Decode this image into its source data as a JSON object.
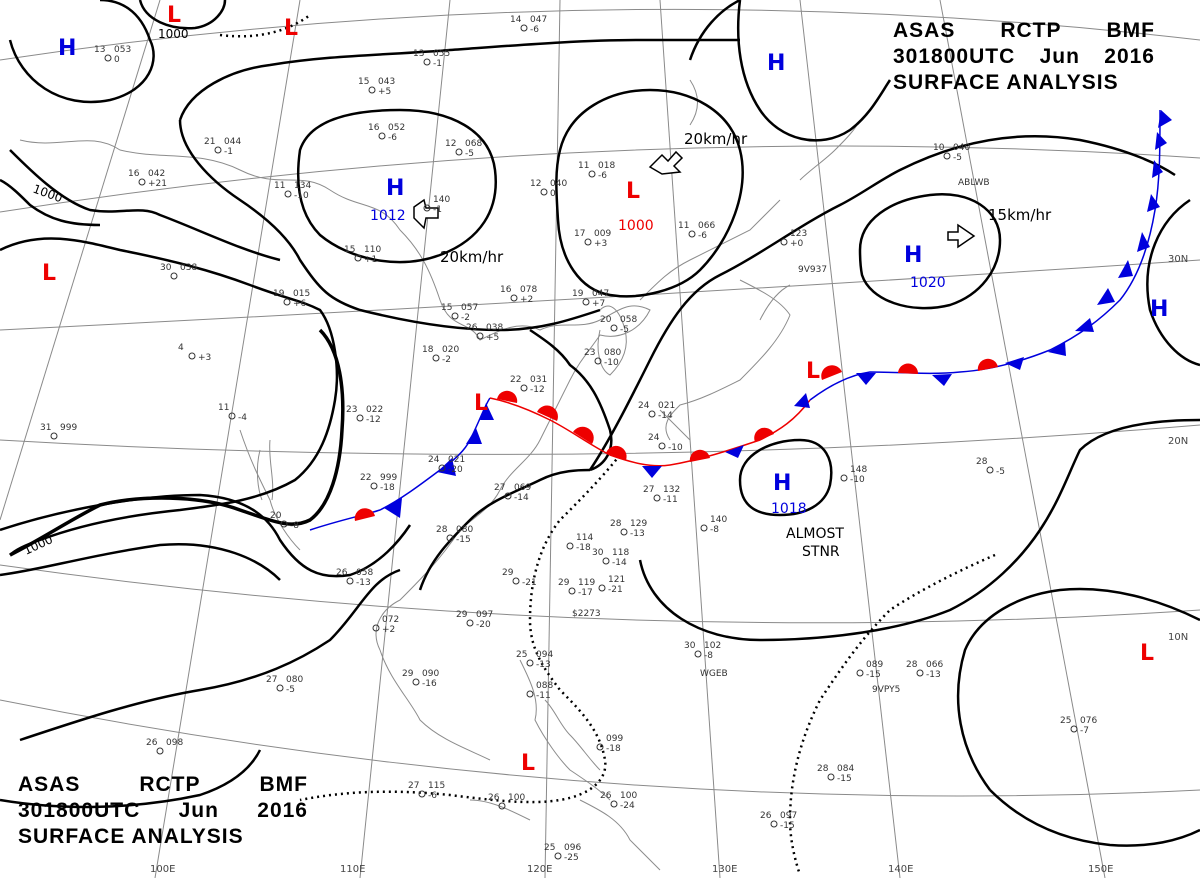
{
  "header": {
    "line1": [
      "ASAS",
      "RCTP",
      "BMF"
    ],
    "line2": [
      "301800UTC",
      "Jun",
      "2016"
    ],
    "line3": "SURFACE ANALYSIS"
  },
  "colors": {
    "high": "#0000dd",
    "low": "#ee0000",
    "front_cold": "#0000dd",
    "front_warm": "#ee0000",
    "land": "#888888",
    "grid": "#888888",
    "isobar": "#000000"
  },
  "pressure_centers": [
    {
      "type": "H",
      "value": "",
      "name": "high-nw-corner"
    },
    {
      "type": "L",
      "value": "1000",
      "name": "low-top-center-1000"
    },
    {
      "type": "L",
      "value": "",
      "name": "low-top-red"
    },
    {
      "type": "H",
      "value": "1012",
      "name": "high-1012"
    },
    {
      "type": "L",
      "value": "1000",
      "name": "low-1000"
    },
    {
      "type": "H",
      "value": "",
      "name": "high-north-pacific"
    },
    {
      "type": "H",
      "value": "1020",
      "name": "high-1020"
    },
    {
      "type": "H",
      "value": "",
      "name": "high-east-edge"
    },
    {
      "type": "L",
      "value": "",
      "name": "low-west"
    },
    {
      "type": "L",
      "value": "",
      "name": "low-china-front"
    },
    {
      "type": "L",
      "value": "",
      "name": "low-japan-front"
    },
    {
      "type": "H",
      "value": "1018",
      "name": "high-1018"
    },
    {
      "type": "L",
      "value": "",
      "name": "low-philippines"
    },
    {
      "type": "L",
      "value": "",
      "name": "low-southeast"
    }
  ],
  "isobar_labels": [
    "1000",
    "1000",
    "1000"
  ],
  "annotations": {
    "motion_20_a": "20km/hr",
    "motion_20_b": "20km/hr",
    "motion_15": "15km/hr",
    "stationary": [
      "ALMOST",
      "STNR"
    ]
  },
  "grid_labels": {
    "lat": [
      "30N",
      "20N",
      "10N"
    ],
    "lon": [
      "100E",
      "110E",
      "120E",
      "130E",
      "140E",
      "150E"
    ]
  },
  "stations": [
    {
      "top": "13",
      "bot": "053",
      "low": "0"
    },
    {
      "top": "14",
      "bot": "047",
      "low": "-6"
    },
    {
      "top": "13",
      "bot": "055",
      "low": "-1"
    },
    {
      "top": "15",
      "bot": "043",
      "low": "+5"
    },
    {
      "top": "16",
      "bot": "052",
      "low": "-6"
    },
    {
      "top": "12",
      "bot": "068",
      "low": "-5"
    },
    {
      "top": "21",
      "bot": "044",
      "low": "-1"
    },
    {
      "top": "16",
      "bot": "042",
      "low": "+21"
    },
    {
      "top": "11",
      "bot": "134",
      "low": "-10"
    },
    {
      "top": "",
      "bot": "140",
      "low": "-1"
    },
    {
      "top": "15",
      "bot": "110",
      "low": "+1"
    },
    {
      "top": "11",
      "bot": "018",
      "low": "-6"
    },
    {
      "top": "12",
      "bot": "040",
      "low": "0"
    },
    {
      "top": "17",
      "bot": "009",
      "low": "+3"
    },
    {
      "top": "11",
      "bot": "066",
      "low": "-6"
    },
    {
      "top": "10",
      "bot": "040",
      "low": "-5"
    },
    {
      "top": "",
      "bot": "123",
      "low": "+0"
    },
    {
      "top": "30",
      "bot": "038",
      "low": ""
    },
    {
      "top": "19",
      "bot": "015",
      "low": "+6"
    },
    {
      "top": "16",
      "bot": "078",
      "low": "+2"
    },
    {
      "top": "19",
      "bot": "047",
      "low": "+7"
    },
    {
      "top": "15",
      "bot": "057",
      "low": "-2"
    },
    {
      "top": "26",
      "bot": "038",
      "low": "+5"
    },
    {
      "top": "20",
      "bot": "058",
      "low": "-5"
    },
    {
      "top": "18",
      "bot": "020",
      "low": "-2"
    },
    {
      "top": "23",
      "bot": "080",
      "low": "-10"
    },
    {
      "top": "22",
      "bot": "031",
      "low": "-12"
    },
    {
      "top": "4",
      "bot": "",
      "low": "+3"
    },
    {
      "top": "11",
      "bot": "",
      "low": "-4"
    },
    {
      "top": "31",
      "bot": "999",
      "low": ""
    },
    {
      "top": "23",
      "bot": "022",
      "low": "-12"
    },
    {
      "top": "24",
      "bot": "021",
      "low": "-20"
    },
    {
      "top": "22",
      "bot": "999",
      "low": "-18"
    },
    {
      "top": "20",
      "bot": "",
      "low": "-8"
    },
    {
      "top": "27",
      "bot": "069",
      "low": "-14"
    },
    {
      "top": "27",
      "bot": "132",
      "low": "-11"
    },
    {
      "top": "24",
      "bot": "021",
      "low": "-14"
    },
    {
      "top": "24",
      "bot": "",
      "low": "-10"
    },
    {
      "top": "28",
      "bot": "080",
      "low": "-15"
    },
    {
      "top": "",
      "bot": "114",
      "low": "-18"
    },
    {
      "top": "28",
      "bot": "129",
      "low": "-13"
    },
    {
      "top": "",
      "bot": "140",
      "low": "-8"
    },
    {
      "top": "",
      "bot": "148",
      "low": "-10"
    },
    {
      "top": "28",
      "bot": "",
      "low": "-5"
    },
    {
      "top": "26",
      "bot": "058",
      "low": "-13"
    },
    {
      "top": "29",
      "bot": "",
      "low": "-21"
    },
    {
      "top": "30",
      "bot": "118",
      "low": "-14"
    },
    {
      "top": "29",
      "bot": "119",
      "low": "-17"
    },
    {
      "top": "",
      "bot": "121",
      "low": "-21"
    },
    {
      "top": "",
      "bot": "072",
      "low": "+2"
    },
    {
      "top": "29",
      "bot": "097",
      "low": "-20"
    },
    {
      "top": "30",
      "bot": "102",
      "low": "-8"
    },
    {
      "top": "25",
      "bot": "094",
      "low": "-13"
    },
    {
      "top": "",
      "bot": "088",
      "low": "-11"
    },
    {
      "top": "27",
      "bot": "080",
      "low": "-5"
    },
    {
      "top": "29",
      "bot": "090",
      "low": "-16"
    },
    {
      "top": "",
      "bot": "089",
      "low": "-15"
    },
    {
      "top": "28",
      "bot": "066",
      "low": "-13"
    },
    {
      "top": "26",
      "bot": "098",
      "low": ""
    },
    {
      "top": "",
      "bot": "099",
      "low": "-18"
    },
    {
      "top": "28",
      "bot": "084",
      "low": "-15"
    },
    {
      "top": "25",
      "bot": "076",
      "low": "-7"
    },
    {
      "top": "27",
      "bot": "115",
      "low": "-6"
    },
    {
      "top": "26",
      "bot": "100",
      "low": ""
    },
    {
      "top": "26",
      "bot": "100",
      "low": "-24"
    },
    {
      "top": "26",
      "bot": "097",
      "low": "-15"
    },
    {
      "top": "25",
      "bot": "096",
      "low": "-25"
    }
  ],
  "ship_ids": [
    "ABLWB",
    "9V937",
    "WGEB",
    "9VPY5",
    "$2273"
  ]
}
